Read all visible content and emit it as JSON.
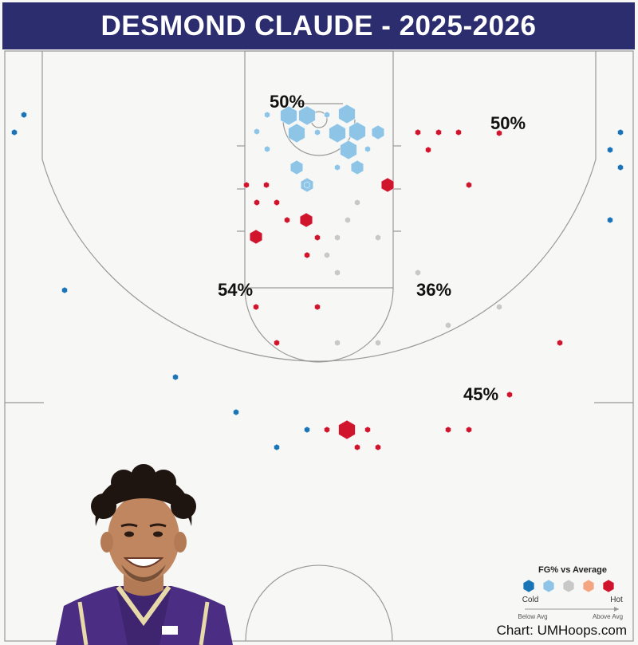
{
  "title": "DESMOND CLAUDE - 2025-2026",
  "credit": "Chart: UMHoops.com",
  "legend": {
    "title": "FG% vs Average",
    "cold_label": "Cold",
    "hot_label": "Hot",
    "below_label": "Below Avg",
    "above_label": "Above Avg",
    "colors": [
      "#1a74b5",
      "#8ec4e6",
      "#c8c8c8",
      "#f4a582",
      "#d0142c"
    ]
  },
  "player_photo": "player-portrait",
  "chart_data": {
    "type": "scatter",
    "title": "DESMOND CLAUDE - 2025-2026",
    "color_key": {
      "cold": "#1a74b5",
      "cool": "#8ec4e6",
      "avg": "#c8c8c8",
      "warm": "#f4a582",
      "hot": "#d0142c"
    },
    "zone_labels": [
      {
        "text": "50%",
        "zone": "rim"
      },
      {
        "text": "50%",
        "zone": "right-wing-three"
      },
      {
        "text": "54%",
        "zone": "left-midrange"
      },
      {
        "text": "36%",
        "zone": "right-midrange"
      },
      {
        "text": "45%",
        "zone": "top-three"
      }
    ],
    "shots": [
      {
        "x": -13,
        "y": 3,
        "s": 3,
        "c": "cool"
      },
      {
        "x": -3,
        "y": 1.5,
        "s": 3,
        "c": "cool"
      },
      {
        "x": -5,
        "y": -2,
        "s": 3,
        "c": "cool"
      },
      {
        "x": -1,
        "y": -3,
        "s": 3,
        "c": "cool"
      },
      {
        "x": 5,
        "y": 1.5,
        "s": 3,
        "c": "cool"
      },
      {
        "x": 3,
        "y": -2,
        "s": 3,
        "c": "cool"
      },
      {
        "x": 8,
        "y": -1,
        "s": 2,
        "c": "cool"
      },
      {
        "x": 11,
        "y": -4.5,
        "s": 3,
        "c": "cool"
      },
      {
        "x": 6,
        "y": -7,
        "s": 3,
        "c": "cool"
      },
      {
        "x": -7.5,
        "y": -10.5,
        "s": 2,
        "c": "cool"
      },
      {
        "x": 14,
        "y": -4,
        "s": 2,
        "c": "cool"
      },
      {
        "x": 10.5,
        "y": -9,
        "s": 2,
        "c": "cool"
      },
      {
        "x": 0.5,
        "y": -5,
        "s": 1,
        "c": "cool"
      },
      {
        "x": 4,
        "y": 0.5,
        "s": 1,
        "c": "cool"
      },
      {
        "x": -25,
        "y": -6,
        "s": 1,
        "c": "cool"
      },
      {
        "x": -25,
        "y": -3.5,
        "s": 1,
        "c": "cool"
      },
      {
        "x": -21,
        "y": 1.5,
        "s": 1,
        "c": "cool"
      },
      {
        "x": -25,
        "y": 1.5,
        "s": 1,
        "c": "cool"
      },
      {
        "x": -13,
        "y": -17.5,
        "s": 2,
        "c": "cool"
      },
      {
        "x": -3,
        "y": -15,
        "s": 2,
        "c": "cool"
      },
      {
        "x": -5,
        "y": -27.5,
        "s": 2,
        "c": "cool"
      },
      {
        "x": 1,
        "y": -22.5,
        "s": 1,
        "c": "cool"
      },
      {
        "x": 15,
        "y": -18.5,
        "s": 2,
        "c": "cool"
      },
      {
        "x": 9,
        "y": -10,
        "s": 1,
        "c": "cool"
      },
      {
        "x": -21,
        "y": -29.5,
        "s": 1,
        "c": "red"
      },
      {
        "x": -9,
        "y": -29.5,
        "s": 1,
        "c": "red"
      },
      {
        "x": 27.5,
        "y": -25,
        "s": 2,
        "c": "red"
      },
      {
        "x": -45,
        "y": -30,
        "s": 1,
        "c": "red"
      },
      {
        "x": -33,
        "y": -30,
        "s": 1,
        "c": "red"
      },
      {
        "x": -7,
        "y": -36,
        "s": 1,
        "c": "red"
      },
      {
        "x": -12,
        "y": -25.5,
        "s": 1,
        "c": "red"
      },
      {
        "x": -43,
        "y": -45,
        "s": 1,
        "c": "red"
      }
    ],
    "xlim": [
      -130,
      130
    ],
    "ylim": [
      -245,
      35
    ]
  }
}
